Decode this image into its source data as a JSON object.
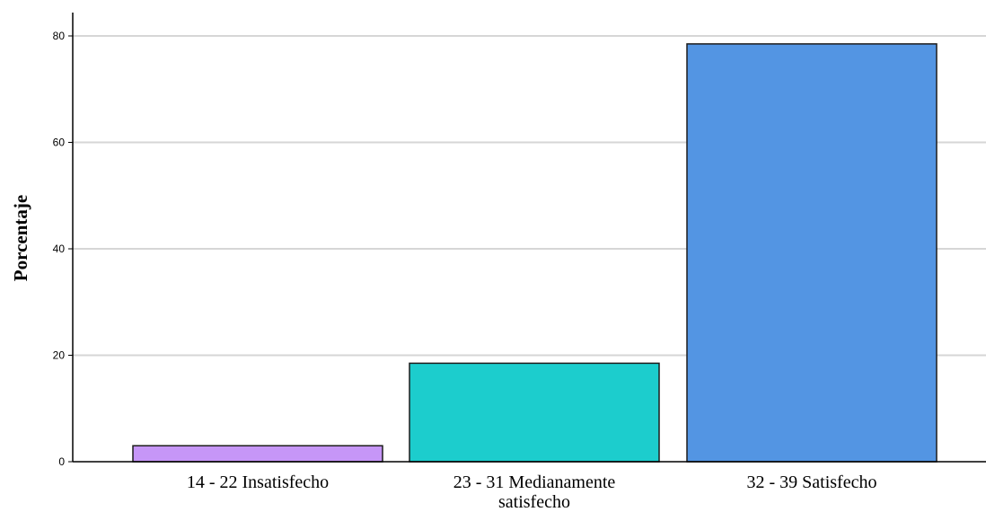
{
  "chart_data": {
    "type": "bar",
    "categories": [
      [
        "14 - 22 Insatisfecho"
      ],
      [
        "23 - 31 Medianamente",
        "satisfecho"
      ],
      [
        "32 - 39 Satisfecho"
      ]
    ],
    "values": [
      3.0,
      18.5,
      78.5
    ],
    "bar_colors": [
      "#c696f7",
      "#1ccdcd",
      "#5395e3"
    ],
    "title": "",
    "xlabel": "",
    "ylabel": "Porcentaje",
    "ylim": [
      0,
      84
    ],
    "yticks": [
      0,
      20,
      40,
      60,
      80
    ],
    "grid": true,
    "legend": "none"
  }
}
